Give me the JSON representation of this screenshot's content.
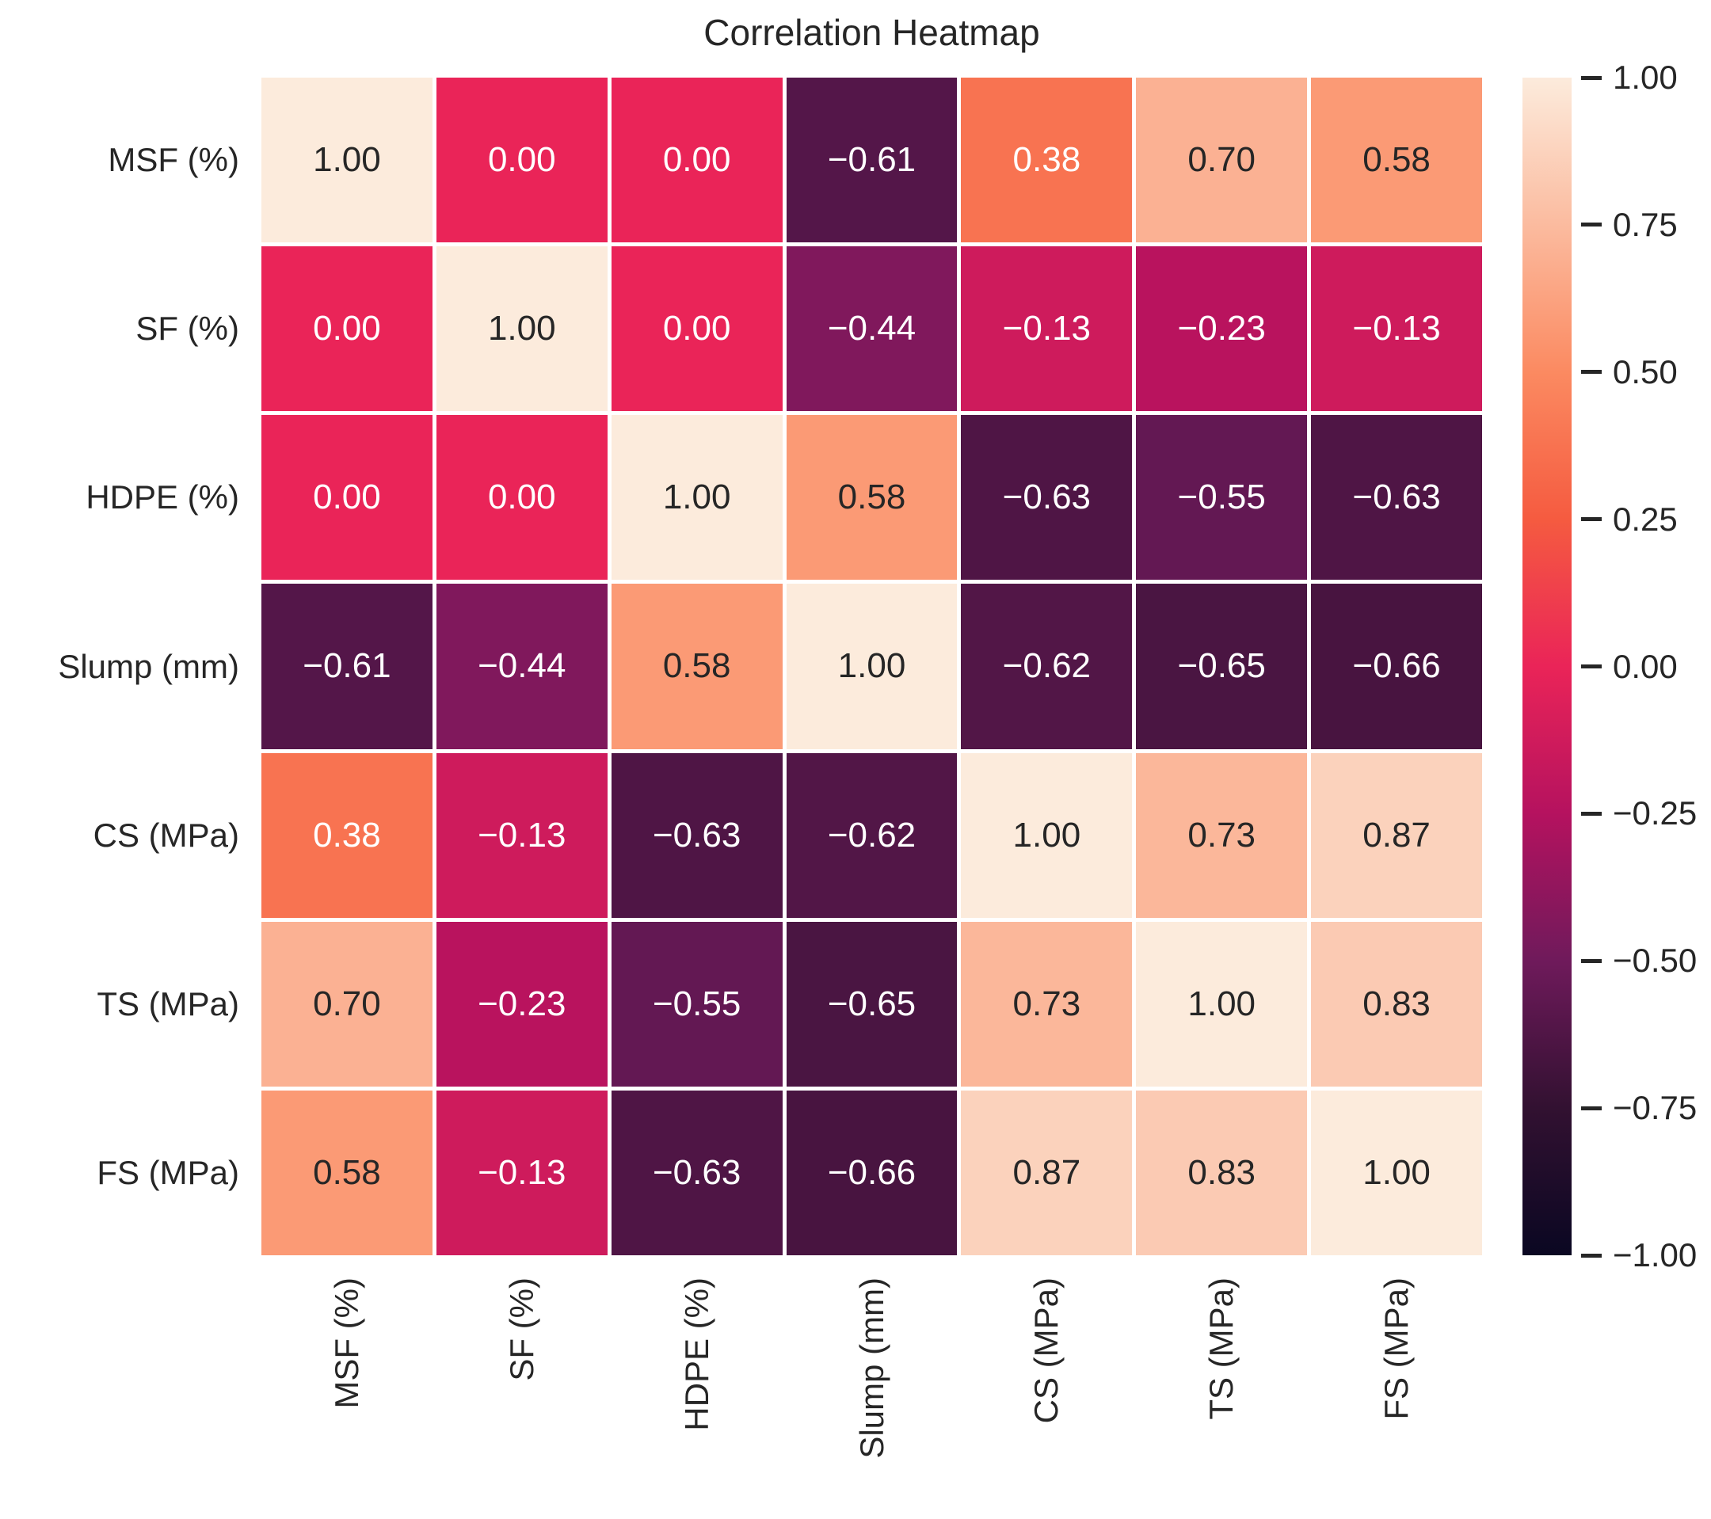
{
  "title": "Correlation Heatmap",
  "chart_data": {
    "type": "heatmap",
    "title": "Correlation Heatmap",
    "categories": [
      "MSF (%)",
      "SF (%)",
      "HDPE (%)",
      "Slump (mm)",
      "CS (MPa)",
      "TS (MPa)",
      "FS (MPa)"
    ],
    "matrix": [
      [
        1.0,
        0.0,
        0.0,
        -0.61,
        0.38,
        0.7,
        0.58
      ],
      [
        0.0,
        1.0,
        0.0,
        -0.44,
        -0.13,
        -0.23,
        -0.13
      ],
      [
        0.0,
        0.0,
        1.0,
        0.58,
        -0.63,
        -0.55,
        -0.63
      ],
      [
        -0.61,
        -0.44,
        0.58,
        1.0,
        -0.62,
        -0.65,
        -0.66
      ],
      [
        0.38,
        -0.13,
        -0.63,
        -0.62,
        1.0,
        0.73,
        0.87
      ],
      [
        0.7,
        -0.23,
        -0.55,
        -0.65,
        0.73,
        1.0,
        0.83
      ],
      [
        0.58,
        -0.13,
        -0.63,
        -0.66,
        0.87,
        0.83,
        1.0
      ]
    ],
    "vmin": -1.0,
    "vmax": 1.0,
    "annotation_decimals": 2,
    "colorbar_ticks": [
      1.0,
      0.75,
      0.5,
      0.25,
      0.0,
      -0.25,
      -0.5,
      -0.75,
      -1.0
    ],
    "legend_position": "right",
    "grid": "white-lines",
    "colormap": {
      "name": "rocket",
      "stops": [
        {
          "v": 1.0,
          "c": "#FCEBDC"
        },
        {
          "v": 0.75,
          "c": "#FBBB9F"
        },
        {
          "v": 0.5,
          "c": "#FB8A61"
        },
        {
          "v": 0.25,
          "c": "#F55B40"
        },
        {
          "v": 0.0,
          "c": "#EA2458"
        },
        {
          "v": -0.25,
          "c": "#B5125F"
        },
        {
          "v": -0.5,
          "c": "#6F1A5B"
        },
        {
          "v": -0.75,
          "c": "#321131"
        },
        {
          "v": -1.0,
          "c": "#0A0722"
        }
      ]
    },
    "annotation_colors": {
      "light": "#FFFFFF",
      "dark": "#262626"
    },
    "gridline_color": "#FFFFFF",
    "text_color": "#262626"
  }
}
